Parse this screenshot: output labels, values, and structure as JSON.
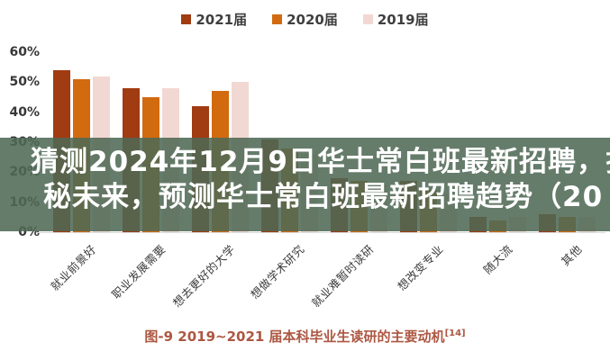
{
  "overlay": {
    "line1": "猜测2024年12月9日华士常白班最新招聘，揭",
    "line2": "秘未来，预测华士常白班最新招聘趋势（20",
    "band_tint": "#4E6854",
    "band_opacity": 0.87,
    "text_color": "#FFFFFF"
  },
  "caption": {
    "prefix": "图-9 2019~2021 届本科毕业生读研的主要动机",
    "superscript": "[14]",
    "color": "#AD5742"
  },
  "chart_data": {
    "type": "bar",
    "title": "2019~2021 届本科毕业生读研的主要动机",
    "categories": [
      "就业前景好",
      "职业发展需要",
      "想去更好的大学",
      "想做学术研究",
      "就业难暂时读研",
      "想改变专业",
      "随大流",
      "其他"
    ],
    "series": [
      {
        "name": "2021届",
        "color": "#A03B12",
        "values": [
          54,
          48,
          42,
          31,
          18,
          17,
          5,
          6
        ]
      },
      {
        "name": "2020届",
        "color": "#D26A10",
        "values": [
          51,
          45,
          47,
          28,
          17,
          14,
          4,
          5
        ]
      },
      {
        "name": "2019届",
        "color": "#F2D8D3",
        "values": [
          52,
          48,
          50,
          26,
          16,
          13,
          5,
          5
        ]
      }
    ],
    "xlabel": "",
    "ylabel": "",
    "ylim": [
      0,
      60
    ],
    "y_ticks": [
      {
        "value": 60,
        "label": "60%"
      },
      {
        "value": 50,
        "label": "50%"
      },
      {
        "value": 40,
        "label": "40%"
      },
      {
        "value": 30,
        "label": "30%"
      },
      {
        "value": 20,
        "label": "20%"
      },
      {
        "value": 10,
        "label": "10%"
      },
      {
        "value": 0,
        "label": "0%"
      }
    ],
    "grid": false,
    "legend_position": "top-center"
  }
}
